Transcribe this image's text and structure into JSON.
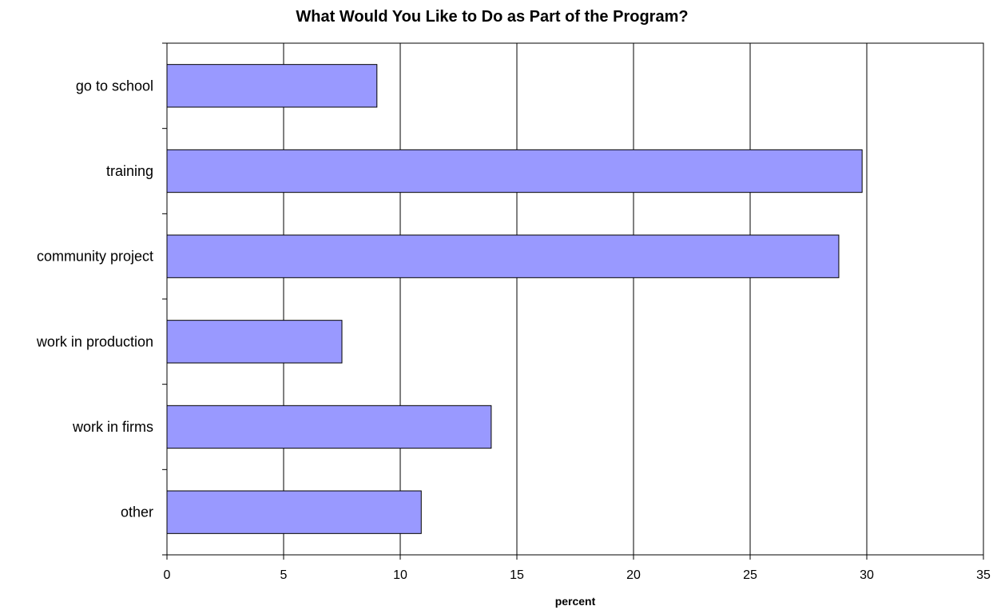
{
  "chart_data": {
    "type": "bar",
    "orientation": "horizontal",
    "title": "What Would You Like to Do as Part of the Program?",
    "xlabel": "percent",
    "ylabel": "",
    "categories": [
      "go to school",
      "training",
      "community project",
      "work in production",
      "work in firms",
      "other"
    ],
    "values": [
      9.0,
      29.8,
      28.8,
      7.5,
      13.9,
      10.9
    ],
    "xlim": [
      0,
      35
    ],
    "xticks": [
      "0",
      "5",
      "10",
      "15",
      "20",
      "25",
      "30",
      "35"
    ],
    "grid": "vertical",
    "legend": "none",
    "bar_color": "#9999ff",
    "bar_edge_color": "#000000"
  }
}
